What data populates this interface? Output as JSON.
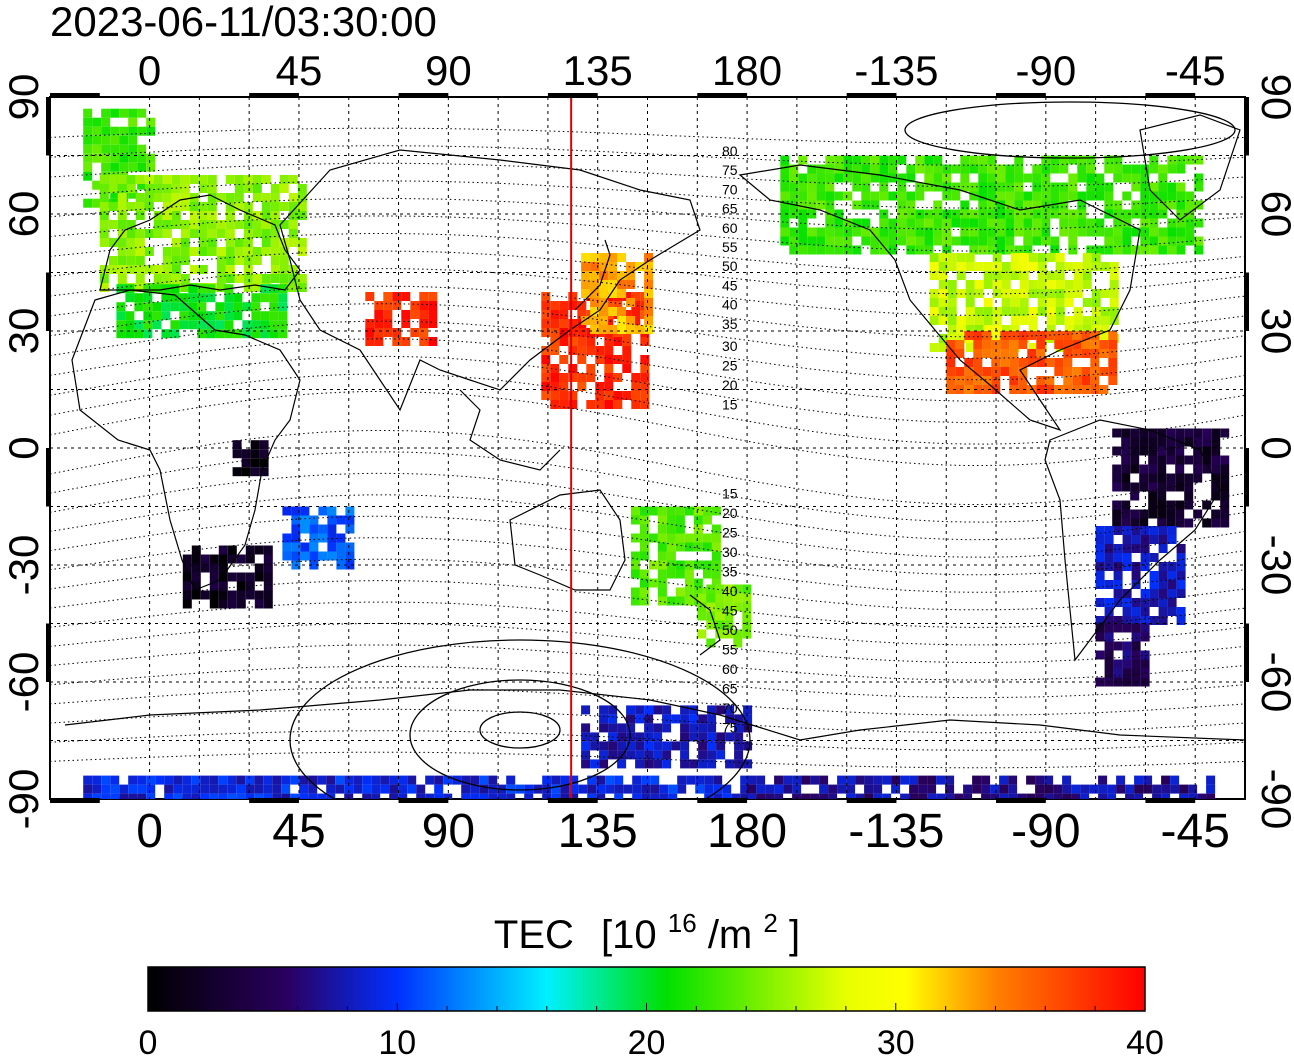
{
  "timestamp": "2023-06-11/03:30:00",
  "top_lon_labels": [
    "0",
    "45",
    "90",
    "135",
    "180",
    "-135",
    "-90",
    "-45"
  ],
  "bottom_lon_labels": [
    "0",
    "45",
    "90",
    "135",
    "180",
    "-135",
    "-90",
    "-45"
  ],
  "left_lat_labels": [
    "90",
    "60",
    "30",
    "0",
    "-30",
    "-60",
    "-90"
  ],
  "right_lat_labels": [
    "90",
    "60",
    "30",
    "0",
    "-30",
    "-60",
    "-90"
  ],
  "magnetic_lat_labels_north": [
    "80",
    "75",
    "70",
    "65",
    "60",
    "55",
    "50",
    "45",
    "40",
    "35",
    "30",
    "25",
    "20",
    "15"
  ],
  "magnetic_lat_labels_south": [
    "15",
    "20",
    "25",
    "30",
    "35",
    "40",
    "45",
    "50",
    "55",
    "60",
    "65",
    "70",
    "75"
  ],
  "colorbar": {
    "title_main": "TEC",
    "title_unit_pre": "[10",
    "title_unit_sup1": "16",
    "title_unit_mid": "/m",
    "title_unit_sup2": "2",
    "title_unit_post": "]",
    "ticks": [
      "0",
      "10",
      "20",
      "30",
      "40"
    ],
    "min": 0,
    "max": 40
  },
  "colors": {
    "terminator": "#e00000",
    "scale": [
      "#000000",
      "#2a0060",
      "#0030ff",
      "#00f0ff",
      "#00e000",
      "#ffff00",
      "#ff8000",
      "#ff0000"
    ]
  },
  "map_layer": {
    "terminator_lon": 127,
    "tec_patches": [
      {
        "lon0": -20,
        "lon1": 0,
        "lat0": 63,
        "lat1": 87,
        "tec": 23
      },
      {
        "lon0": -15,
        "lon1": 45,
        "lat0": 40,
        "lat1": 70,
        "tec": 26
      },
      {
        "lon0": -10,
        "lon1": 40,
        "lat0": 30,
        "lat1": 42,
        "tec": 21
      },
      {
        "lon0": 65,
        "lon1": 85,
        "lat0": 28,
        "lat1": 40,
        "tec": 38
      },
      {
        "lon0": 118,
        "lon1": 150,
        "lat0": 10,
        "lat1": 40,
        "tec": 38
      },
      {
        "lon0": 130,
        "lon1": 150,
        "lat0": 30,
        "lat1": 50,
        "tec": 33
      },
      {
        "lon0": 10,
        "lon1": 35,
        "lat0": -40,
        "lat1": -25,
        "tec": 2
      },
      {
        "lon0": 25,
        "lon1": 35,
        "lat0": -5,
        "lat1": 2,
        "tec": 1
      },
      {
        "lon0": 40,
        "lon1": 60,
        "lat0": -30,
        "lat1": -15,
        "tec": 11
      },
      {
        "lon0": 145,
        "lon1": 170,
        "lat0": -40,
        "lat1": -15,
        "tec": 24
      },
      {
        "lon0": 165,
        "lon1": 180,
        "lat0": -50,
        "lat1": -35,
        "tec": 25
      },
      {
        "lon0": -170,
        "lon1": -45,
        "lat0": 50,
        "lat1": 75,
        "tec": 23
      },
      {
        "lon0": -125,
        "lon1": -70,
        "lat0": 25,
        "lat1": 50,
        "tec": 28
      },
      {
        "lon0": -120,
        "lon1": -70,
        "lat0": 15,
        "lat1": 30,
        "tec": 36
      },
      {
        "lon0": -70,
        "lon1": -35,
        "lat0": -20,
        "lat1": 5,
        "tec": 3
      },
      {
        "lon0": -75,
        "lon1": -50,
        "lat0": -45,
        "lat1": -20,
        "tec": 8
      },
      {
        "lon0": -75,
        "lon1": -60,
        "lat0": -60,
        "lat1": -45,
        "tec": 5
      },
      {
        "lon0": 130,
        "lon1": 180,
        "lat0": -82,
        "lat1": -66,
        "tec": 8
      },
      {
        "lon0": -20,
        "lon1": 180,
        "lat0": -89,
        "lat1": -84,
        "tec": 9
      },
      {
        "lon0": -180,
        "lon1": -40,
        "lat0": -89,
        "lat1": -84,
        "tec": 7
      }
    ]
  }
}
